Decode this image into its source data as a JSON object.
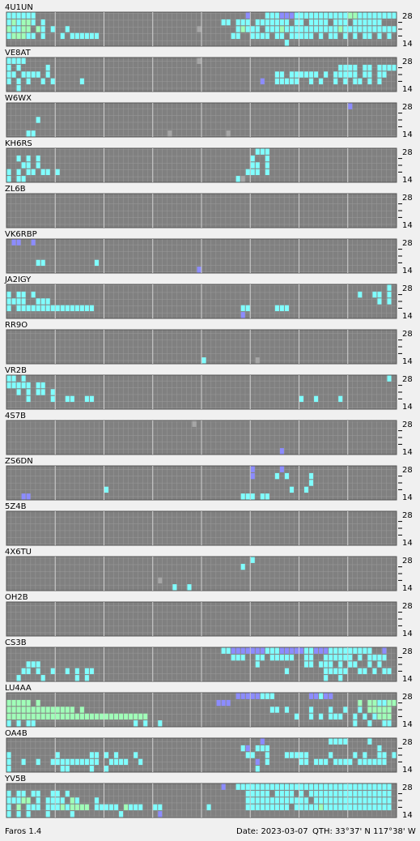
{
  "band_top": "28",
  "band_bottom": "14",
  "stations": [
    {
      "name": "4U1UN",
      "rows": [
        "cccccc...........................................b...cccbbbcccccccccccggccccccccccc",
        "cgcggc.c....................................cc.ccc.ccccccc.cc.cccc.ccc.cccccc",
        "gccgg.gc.c..c..........................x.......cgccc.cccgcccccccccccgcccccccccccc",
        "cgggcc.c...c.cccccc...........................cc..cccc.cc.ccccc.c.cc.c.c.cc.c.c",
        ".........................................................c"
      ]
    },
    {
      "name": "VE8AT",
      "rows": [
        "cccc...................................x",
        "c.c.....c...........................................................cccc.cc.cccccbcc.ccc",
        "cc.cccc.c..............................................cc.cccccc.c.ccccc.cc.cc",
        "c.c.c..c.c.....c....................................b..ccccc..c.c..c.c.cc.c.c",
        "..c"
      ]
    },
    {
      "name": "W6WX",
      "rows": [
        "......................................................................b",
        "",
        "......c",
        "",
        "....cc...........................x...........x"
      ]
    },
    {
      "name": "KH6RS",
      "rows": [
        "...................................................ccc",
        "..c.c.c...........................................c..c",
        "...cc.c...........................................cc.c",
        "c.c.cc.cc.c......................................ccc.c",
        "c.cc...........................................cx"
      ]
    },
    {
      "name": "ZL6B",
      "rows": [
        "",
        "",
        "",
        "",
        ""
      ]
    },
    {
      "name": "VK6RBP",
      "rows": [
        ".bb..b",
        "",
        "",
        "......cc..........c",
        ".......................................b"
      ]
    },
    {
      "name": "JA2IGY",
      "rows": [
        "..............................................................................c",
        "c.cc.c..................................................................c..cc.c",
        "cccc..ccc...................................................................c.c.c",
        "c.cccccccccccccccc..............................cc.....ccc......................cc.c",
        "................................................b"
      ]
    },
    {
      "name": "RR9O",
      "rows": [
        "",
        "",
        "",
        "",
        "........................................c..........x"
      ]
    },
    {
      "name": "VR2B",
      "rows": [
        "cc.c..........................................................................c",
        "ccccc.cc..........................................................................c.c",
        "..c.c.cc.c",
        "....c....c..cc..cc..........................................c..c....c"
      ]
    },
    {
      "name": "4S7B",
      "rows": [
        "......................................x",
        "",
        "",
        "",
        "........................................................b"
      ]
    },
    {
      "name": "ZS6DN",
      "rows": [
        "..................................................b.....b",
        "..................................................b....c.c....c",
        "..............................................................c",
        "....................c.....................................c..c",
        "...bb...........................................ccc.cc"
      ]
    },
    {
      "name": "5Z4B",
      "rows": [
        "",
        "",
        "",
        "",
        ""
      ]
    },
    {
      "name": "4X6TU",
      "rows": [
        "..................................................c",
        "................................................c",
        "",
        "...............................x",
        "..................................c..c"
      ]
    },
    {
      "name": "OH2B",
      "rows": [
        "",
        "",
        "",
        "",
        ""
      ]
    },
    {
      "name": "CS3B",
      "rows": [
        "............................................ccbbbbbbbcccbbbbbccbbbccccccccc..b",
        "..............................................ccc..cc.ccccc..cc..cccccc.c.cccc",
        "....ccc............................................c.........cc.ccc.c.cc..c.c",
        "...cc.c..c..c.c.cc.......................................c.......ccccc..cc.c.cc",
        "..c....c......c.c................................................c..c"
      ]
    },
    {
      "name": "LU4AA",
      "rows": [
        "...............................................bbbbbccc.......bbcbb..............bbbcgg",
        "ggggg.g....................................bbb..........................g.ggccgg",
        "gggggggggggggg.g......................................cc.c....c...c..c..c.ggggg",
        "ggggggggggggggggggggggggggggg..............................c..c.c.ccc..c.c.cggg",
        "c.c.cc....................c.c..c.......................................c..c..cc"
      ]
    },
    {
      "name": "OA4B",
      "rows": [
        "....................................................b.............cccc....c.....c",
        "................................................cb.ccc......................c",
        "c.........c......cc.c.c...c......................cc..c...ccccc....c....c.c..cc.c",
        "c..c..c..cccccccccc..cccc..c.......................b.c......cc.ccc.cccc.cccccc",
        "c..........cc....c..c..............................c"
      ]
    },
    {
      "name": "YV5B",
      "rows": [
        "............................................b..cccccccccccccccccccccccccccccccc",
        "c.cc.cc..cc.c....................................ccccc.cccc.c.ccccccccccccccccc",
        "cccgg.c.cccc.gc...c..............................ccccccccccccc.cccccccccccccccc",
        "c.g.ccc.cccgcgggg.ccccc.gccc..cc.........c.......ccccccccc.cccccgcccccccccccccc",
        "c.c.c...c....c.........c.......b"
      ]
    }
  ],
  "footer": {
    "app": "Faros 1.4",
    "date": "Date: 2023-03-07",
    "qth": "QTH: 33°37' N  117°38' W"
  }
}
